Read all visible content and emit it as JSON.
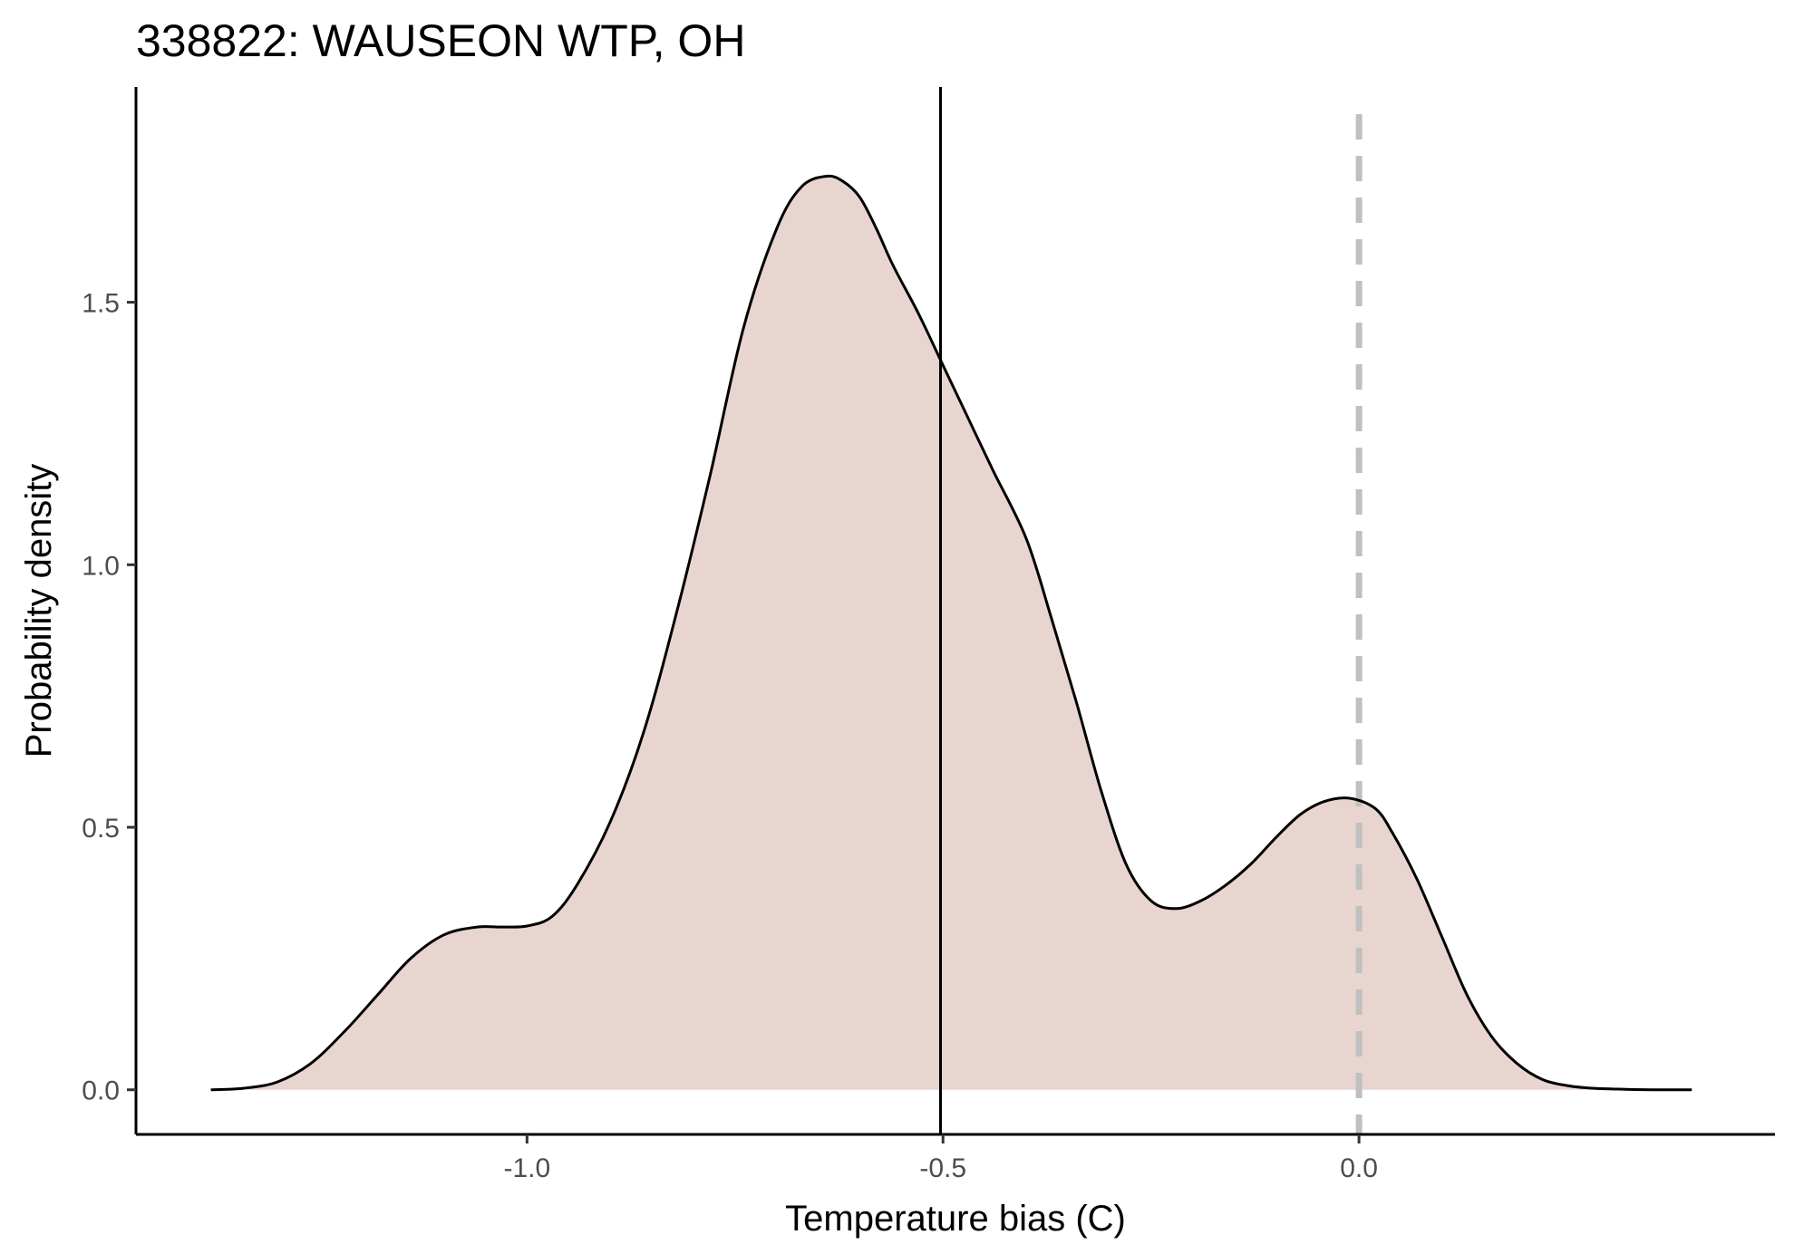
{
  "chart_data": {
    "type": "area",
    "title": "338822: WAUSEON WTP, OH",
    "xlabel": "Temperature bias (C)",
    "ylabel": "Probability density",
    "xlim": [
      -1.47,
      0.5
    ],
    "ylim": [
      -0.085,
      1.91
    ],
    "x_ticks": [
      {
        "value": -1.0,
        "label": "-1.0"
      },
      {
        "value": -0.5,
        "label": "-0.5"
      },
      {
        "value": 0.0,
        "label": "0.0"
      }
    ],
    "y_ticks": [
      {
        "value": 0.0,
        "label": "0.0"
      },
      {
        "value": 0.5,
        "label": "0.5"
      },
      {
        "value": 1.0,
        "label": "1.0"
      },
      {
        "value": 1.5,
        "label": "1.5"
      }
    ],
    "grid": false,
    "colors": {
      "fill": "#e8d5cf",
      "curve": "#000000",
      "reference_line": "#000000",
      "zero_line": "#c0c0c0"
    },
    "reference_lines": [
      {
        "x": -0.503,
        "style": "solid"
      },
      {
        "x": 0.0,
        "style": "dashed"
      }
    ],
    "density": {
      "x": [
        -1.38,
        -1.34,
        -1.3,
        -1.26,
        -1.22,
        -1.18,
        -1.14,
        -1.1,
        -1.06,
        -1.03,
        -1.0,
        -0.97,
        -0.94,
        -0.9,
        -0.86,
        -0.82,
        -0.78,
        -0.74,
        -0.7,
        -0.67,
        -0.64,
        -0.62,
        -0.6,
        -0.58,
        -0.56,
        -0.53,
        -0.5,
        -0.47,
        -0.44,
        -0.4,
        -0.37,
        -0.34,
        -0.31,
        -0.28,
        -0.25,
        -0.22,
        -0.19,
        -0.16,
        -0.13,
        -0.1,
        -0.07,
        -0.04,
        -0.01,
        0.02,
        0.04,
        0.07,
        0.1,
        0.13,
        0.16,
        0.19,
        0.22,
        0.25,
        0.28,
        0.32,
        0.36,
        0.4
      ],
      "y": [
        0.0,
        0.003,
        0.015,
        0.05,
        0.11,
        0.18,
        0.25,
        0.295,
        0.31,
        0.31,
        0.312,
        0.33,
        0.39,
        0.51,
        0.68,
        0.91,
        1.17,
        1.45,
        1.64,
        1.72,
        1.74,
        1.73,
        1.7,
        1.64,
        1.57,
        1.48,
        1.38,
        1.28,
        1.18,
        1.05,
        0.9,
        0.74,
        0.57,
        0.43,
        0.36,
        0.345,
        0.36,
        0.39,
        0.43,
        0.48,
        0.525,
        0.55,
        0.555,
        0.535,
        0.49,
        0.4,
        0.29,
        0.18,
        0.1,
        0.05,
        0.02,
        0.008,
        0.003,
        0.001,
        0.0,
        0.0
      ]
    }
  }
}
